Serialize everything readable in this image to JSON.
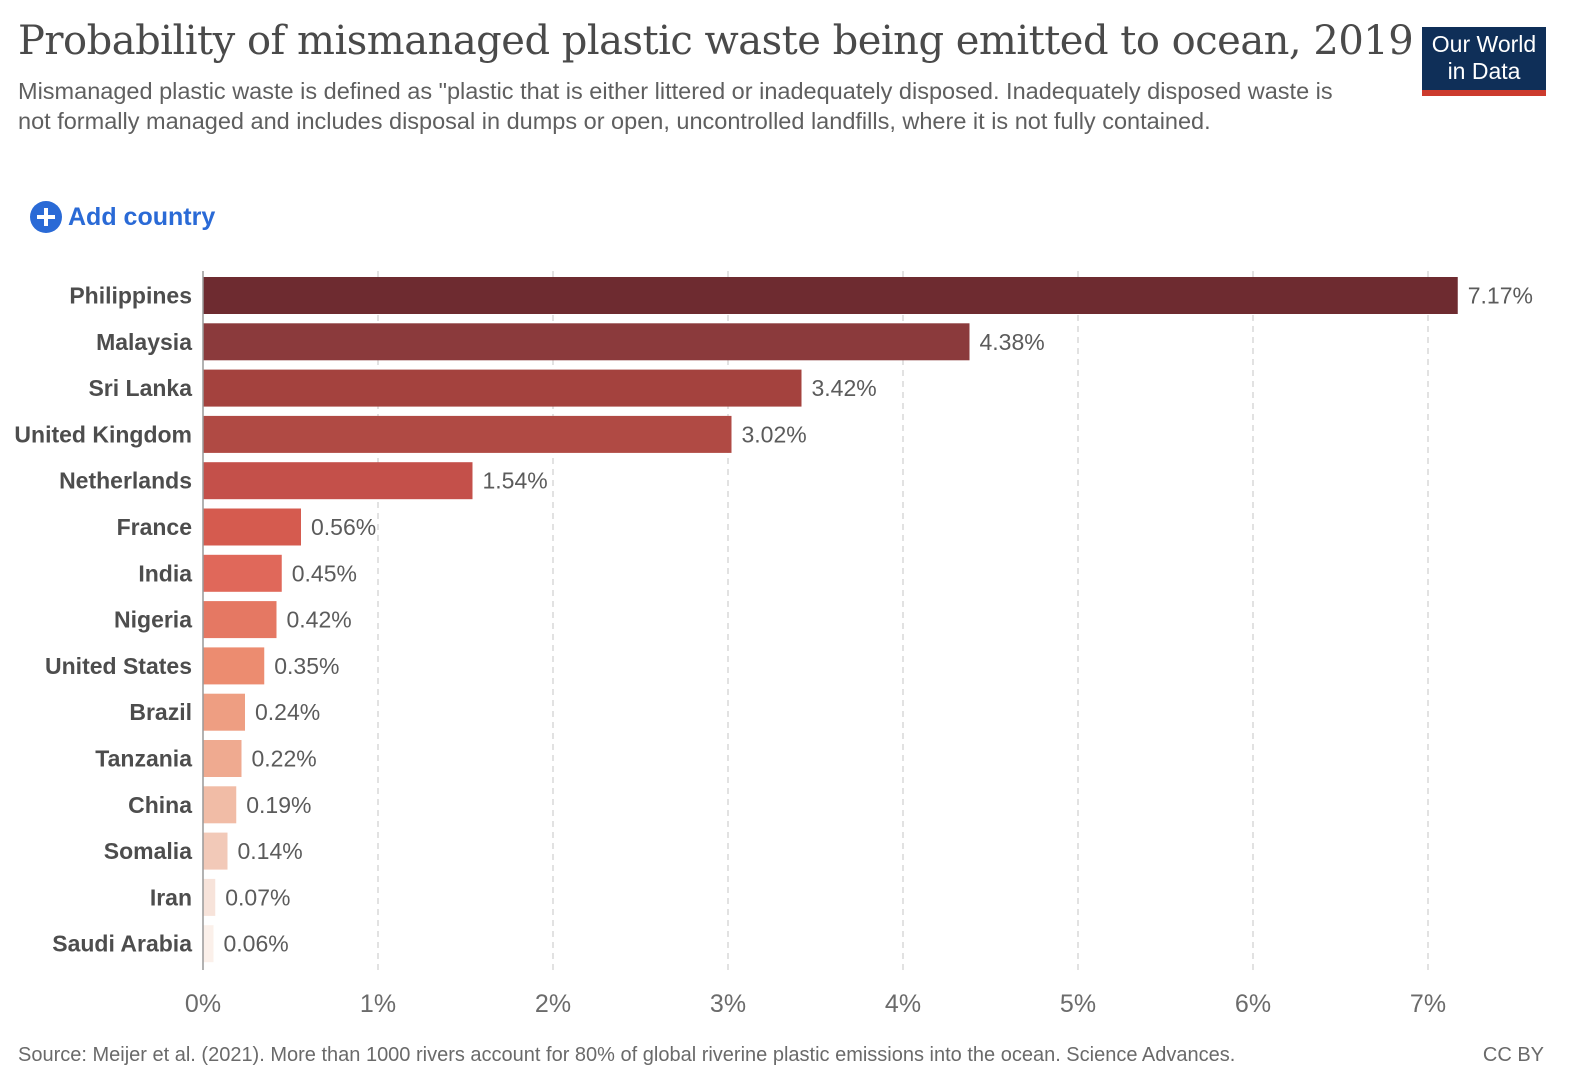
{
  "title": "Probability of mismanaged plastic waste being emitted to ocean, 2019",
  "subtitle": "Mismanaged plastic waste is defined as \"plastic that is either littered or inadequately disposed. Inadequately disposed waste is not formally managed and includes disposal in dumps or open, uncontrolled landfills, where it is not fully contained.",
  "logo": {
    "line1": "Our World",
    "line2": "in Data"
  },
  "controls": {
    "add_country_label": "Add country"
  },
  "footer": {
    "source": "Source: Meijer et al. (2021). More than 1000 rivers account for 80% of global riverine plastic emissions into the ocean. Science Advances.",
    "license": "CC BY"
  },
  "colors": {
    "logo_bg": "#0f2f58",
    "logo_accent": "#cc3b2d",
    "link": "#2a6ad6"
  },
  "chart_data": {
    "type": "bar",
    "orientation": "horizontal",
    "categories": [
      "Philippines",
      "Malaysia",
      "Sri Lanka",
      "United Kingdom",
      "Netherlands",
      "France",
      "India",
      "Nigeria",
      "United States",
      "Brazil",
      "Tanzania",
      "China",
      "Somalia",
      "Iran",
      "Saudi Arabia"
    ],
    "values": [
      7.17,
      4.38,
      3.42,
      3.02,
      1.54,
      0.56,
      0.45,
      0.42,
      0.35,
      0.24,
      0.22,
      0.19,
      0.14,
      0.07,
      0.06
    ],
    "value_labels": [
      "7.17%",
      "4.38%",
      "3.42%",
      "3.02%",
      "1.54%",
      "0.56%",
      "0.45%",
      "0.42%",
      "0.35%",
      "0.24%",
      "0.22%",
      "0.19%",
      "0.14%",
      "0.07%",
      "0.06%"
    ],
    "xlim": [
      0,
      7
    ],
    "x_ticks": [
      0,
      1,
      2,
      3,
      4,
      5,
      6,
      7
    ],
    "x_tick_labels": [
      "0%",
      "1%",
      "2%",
      "3%",
      "4%",
      "5%",
      "6%",
      "7%"
    ],
    "bar_colors": [
      "#6e2b30",
      "#8b3a3c",
      "#a4423e",
      "#b04a44",
      "#c4504a",
      "#d55b4f",
      "#e0685a",
      "#e57863",
      "#ec8c70",
      "#ee9e82",
      "#efaa90",
      "#f1bca6",
      "#f2c9b8",
      "#f7e3da",
      "#fbf0ea"
    ],
    "grid": true,
    "xlabel": "",
    "ylabel": ""
  }
}
